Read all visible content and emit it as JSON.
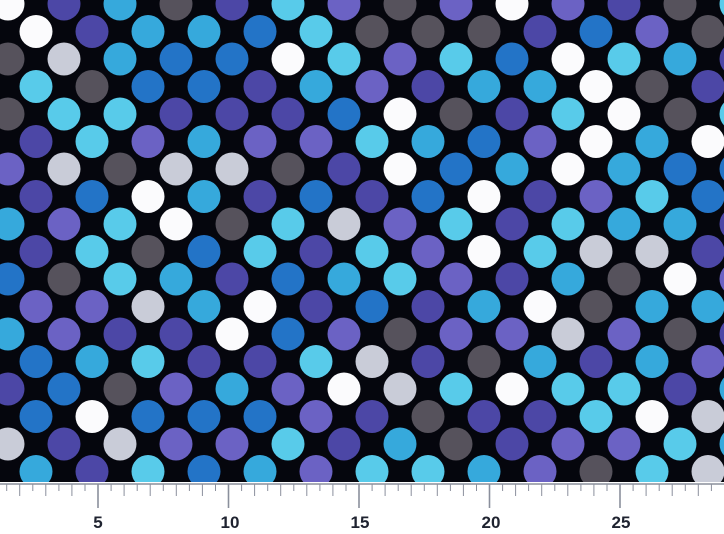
{
  "fabric": {
    "description_free": true,
    "palette": {
      "white": "#fbfbfd",
      "light_gray": "#c9ccd8",
      "dark_gray": "#56525c",
      "sky_blue": "#58cbea",
      "cyan": "#36a9dc",
      "royal_blue": "#2374c7",
      "indigo": "#4c47a6",
      "periwinkle": "#6b62c4",
      "background": "#05060d"
    }
  },
  "ruler": {
    "unit_labels": [
      "5",
      "10",
      "15",
      "20",
      "25"
    ],
    "line_color": "#8a8f9c",
    "text_color": "#1f2330"
  }
}
